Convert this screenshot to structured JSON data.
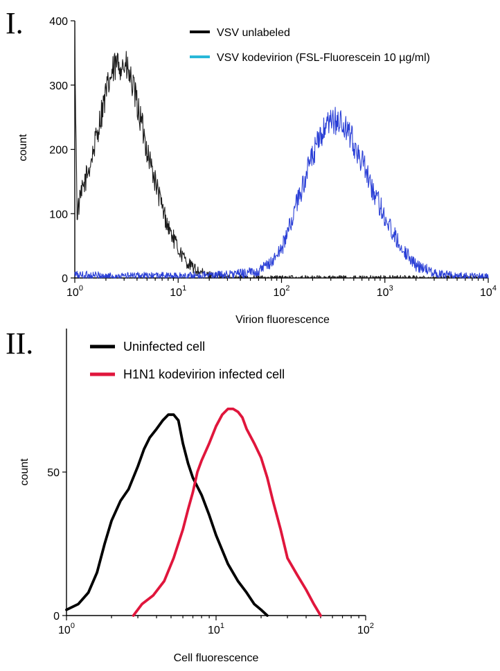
{
  "chart_data": [
    {
      "panel_label": "I.",
      "type": "line",
      "xlabel": "Virion fluorescence",
      "ylabel": "count",
      "x_scale": "log",
      "xlim": [
        1,
        10000
      ],
      "ylim": [
        0,
        400
      ],
      "x_ticks": [
        1,
        10,
        100,
        1000,
        10000
      ],
      "x_tick_labels": [
        {
          "base": "10",
          "exp": "0"
        },
        {
          "base": "10",
          "exp": "1"
        },
        {
          "base": "10",
          "exp": "2"
        },
        {
          "base": "10",
          "exp": "3"
        },
        {
          "base": "10",
          "exp": "4"
        }
      ],
      "y_ticks": [
        0,
        100,
        200,
        300,
        400
      ],
      "y_tick_labels": [
        "0",
        "100",
        "200",
        "300",
        "400"
      ],
      "legend_position": "top-right",
      "series": [
        {
          "name": "VSV unlabeled",
          "color": "#1a1a1a",
          "legend_color": "#000000",
          "noisy": true,
          "x": [
            1.0,
            1.05,
            1.2,
            1.4,
            1.6,
            1.8,
            2.0,
            2.2,
            2.5,
            2.8,
            3.2,
            3.6,
            4.0,
            4.5,
            5.0,
            6.0,
            7.0,
            8.0,
            10.0,
            12.0,
            15.0,
            18.0,
            22.0,
            30.0,
            50.0,
            100.0,
            1000.0,
            10000.0
          ],
          "y": [
            380,
            100,
            140,
            175,
            215,
            255,
            285,
            310,
            330,
            335,
            325,
            300,
            270,
            235,
            200,
            150,
            110,
            80,
            45,
            25,
            12,
            6,
            3,
            1,
            0,
            0,
            0,
            0
          ]
        },
        {
          "name": "VSV kodevirion (FSL-Fluorescein 10 µg/ml)",
          "color": "#2a3fd6",
          "legend_color": "#29b8d8",
          "noisy": true,
          "x": [
            1.0,
            2.0,
            10.0,
            30.0,
            60.0,
            80.0,
            100.0,
            120.0,
            150.0,
            200.0,
            250.0,
            300.0,
            350.0,
            400.0,
            500.0,
            600.0,
            700.0,
            800.0,
            1000.0,
            1200.0,
            1500.0,
            2000.0,
            3000.0,
            5000.0,
            10000.0
          ],
          "y": [
            5,
            3,
            3,
            5,
            10,
            25,
            45,
            80,
            130,
            190,
            225,
            240,
            245,
            235,
            210,
            180,
            155,
            130,
            95,
            70,
            45,
            20,
            8,
            3,
            2
          ]
        }
      ]
    },
    {
      "panel_label": "II.",
      "type": "line",
      "xlabel": "Cell fluorescence",
      "ylabel": "count",
      "x_scale": "log",
      "xlim": [
        1,
        100
      ],
      "ylim": [
        0,
        100
      ],
      "x_ticks": [
        1,
        10,
        100
      ],
      "x_tick_labels": [
        {
          "base": "10",
          "exp": "0"
        },
        {
          "base": "10",
          "exp": "1"
        },
        {
          "base": "10",
          "exp": "2"
        }
      ],
      "y_ticks": [
        0,
        50
      ],
      "y_tick_labels": [
        "0",
        "50"
      ],
      "legend_position": "top-left",
      "series": [
        {
          "name": "Uninfected cell",
          "color": "#000000",
          "legend_color": "#000000",
          "noisy": false,
          "x": [
            1.0,
            1.2,
            1.4,
            1.6,
            1.8,
            2.0,
            2.3,
            2.6,
            3.0,
            3.3,
            3.6,
            4.0,
            4.4,
            4.8,
            5.2,
            5.6,
            6.0,
            6.5,
            7.0,
            8.0,
            9.0,
            10.0,
            12.0,
            14.0,
            16.0,
            18.0,
            20.0,
            22.0
          ],
          "y": [
            2,
            4,
            8,
            15,
            25,
            33,
            40,
            44,
            52,
            58,
            62,
            65,
            68,
            70,
            70,
            68,
            60,
            53,
            48,
            42,
            35,
            28,
            18,
            12,
            8,
            4,
            2,
            0
          ]
        },
        {
          "name": "H1N1 kodevirion infected cell",
          "color": "#e0163c",
          "legend_color": "#e0163c",
          "noisy": false,
          "x": [
            2.8,
            3.2,
            3.8,
            4.5,
            5.2,
            6.0,
            6.5,
            7.0,
            7.5,
            8.0,
            9.0,
            10.0,
            11.0,
            12.0,
            13.0,
            14.0,
            15.0,
            16.0,
            18.0,
            20.0,
            22.0,
            24.0,
            27.0,
            30.0,
            35.0,
            40.0,
            45.0,
            50.0
          ],
          "y": [
            0,
            4,
            7,
            12,
            20,
            30,
            37,
            43,
            50,
            54,
            60,
            66,
            70,
            72,
            72,
            71,
            69,
            65,
            60,
            55,
            48,
            40,
            30,
            20,
            14,
            9,
            4,
            0
          ]
        }
      ]
    }
  ]
}
